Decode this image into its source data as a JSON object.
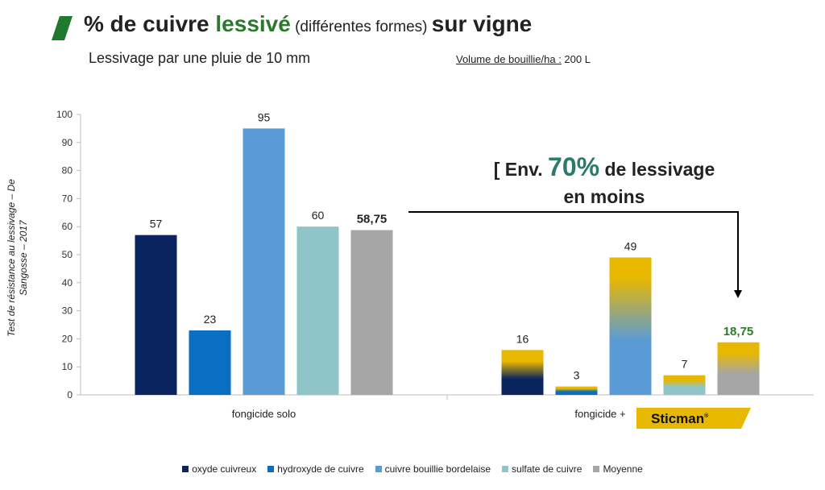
{
  "header": {
    "title_part1": "% de cuivre ",
    "title_green": "lessivé",
    "title_small": " (différentes formes) ",
    "title_part2": " sur vigne",
    "subtitle": "Lessivage par une pluie de 10 mm",
    "volume_label": "Volume de bouillie/ha :",
    "volume_value": " 200 L"
  },
  "annotation": {
    "prefix": "[ Env. ",
    "percent": "70%",
    "line1_suffix": " de lessivage",
    "line2": "en moins"
  },
  "brand": {
    "name": "Sticman",
    "reg": "®"
  },
  "colors": {
    "oxyde": "#0a2460",
    "hydroxyde": "#0a6ec2",
    "bouillie": "#5b9bd5",
    "sulfate": "#8fc4c8",
    "moyenne": "#a6a6a6",
    "sticman_yellow": "#e8b800",
    "highlight_green": "#2b7a2b"
  },
  "chart_data": {
    "type": "bar",
    "ylabel": "Test de résistance au lessivage – De Sangosse – 2017",
    "ylim": [
      0,
      100
    ],
    "yticks": [
      "0",
      "10",
      "20",
      "30",
      "40",
      "50",
      "60",
      "70",
      "80",
      "90",
      "100"
    ],
    "grid": false,
    "legend_position": "bottom",
    "categories": [
      "fongicide solo",
      "fongicide + "
    ],
    "series": [
      {
        "name": "oxyde cuivreux",
        "values": [
          57,
          16
        ],
        "labels": [
          "57",
          "16"
        ]
      },
      {
        "name": "hydroxyde de cuivre",
        "values": [
          23,
          3
        ],
        "labels": [
          "23",
          "3"
        ]
      },
      {
        "name": "cuivre bouillie bordelaise",
        "values": [
          95,
          49
        ],
        "labels": [
          "95",
          "49"
        ]
      },
      {
        "name": "sulfate de cuivre",
        "values": [
          60,
          7
        ],
        "labels": [
          "60",
          "7"
        ]
      },
      {
        "name": "Moyenne",
        "values": [
          58.75,
          18.75
        ],
        "labels": [
          "58,75",
          "18,75"
        ]
      }
    ]
  }
}
